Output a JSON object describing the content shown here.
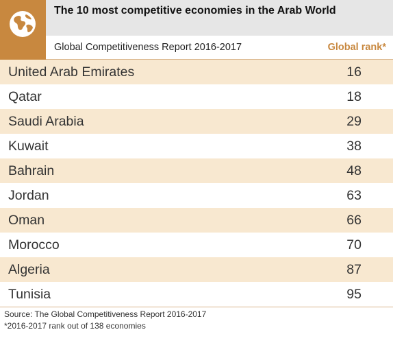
{
  "header": {
    "title": "The 10 most competitive economies in the Arab World",
    "subtitle": "Global Competitiveness Report 2016-2017",
    "rank_column": "Global rank*",
    "logo_icon": "globe-icon"
  },
  "colors": {
    "accent": "#c8883f",
    "row_band": "#f8e8d0",
    "title_band": "#e6e6e6"
  },
  "chart_data": {
    "type": "table",
    "title": "The 10 most competitive economies in the Arab World",
    "subtitle": "Global Competitiveness Report 2016-2017",
    "columns": [
      "",
      "Global rank*"
    ],
    "rows": [
      {
        "country": "United Arab Emirates",
        "rank": "16"
      },
      {
        "country": "Qatar",
        "rank": "18"
      },
      {
        "country": "Saudi Arabia",
        "rank": "29"
      },
      {
        "country": "Kuwait",
        "rank": "38"
      },
      {
        "country": "Bahrain",
        "rank": "48"
      },
      {
        "country": "Jordan",
        "rank": "63"
      },
      {
        "country": "Oman",
        "rank": "66"
      },
      {
        "country": "Morocco",
        "rank": "70"
      },
      {
        "country": "Algeria",
        "rank": "87"
      },
      {
        "country": "Tunisia",
        "rank": "95"
      }
    ]
  },
  "footer": {
    "source": "Source: The Global Competitiveness Report 2016-2017",
    "note": "*2016-2017 rank out of 138 economies"
  }
}
